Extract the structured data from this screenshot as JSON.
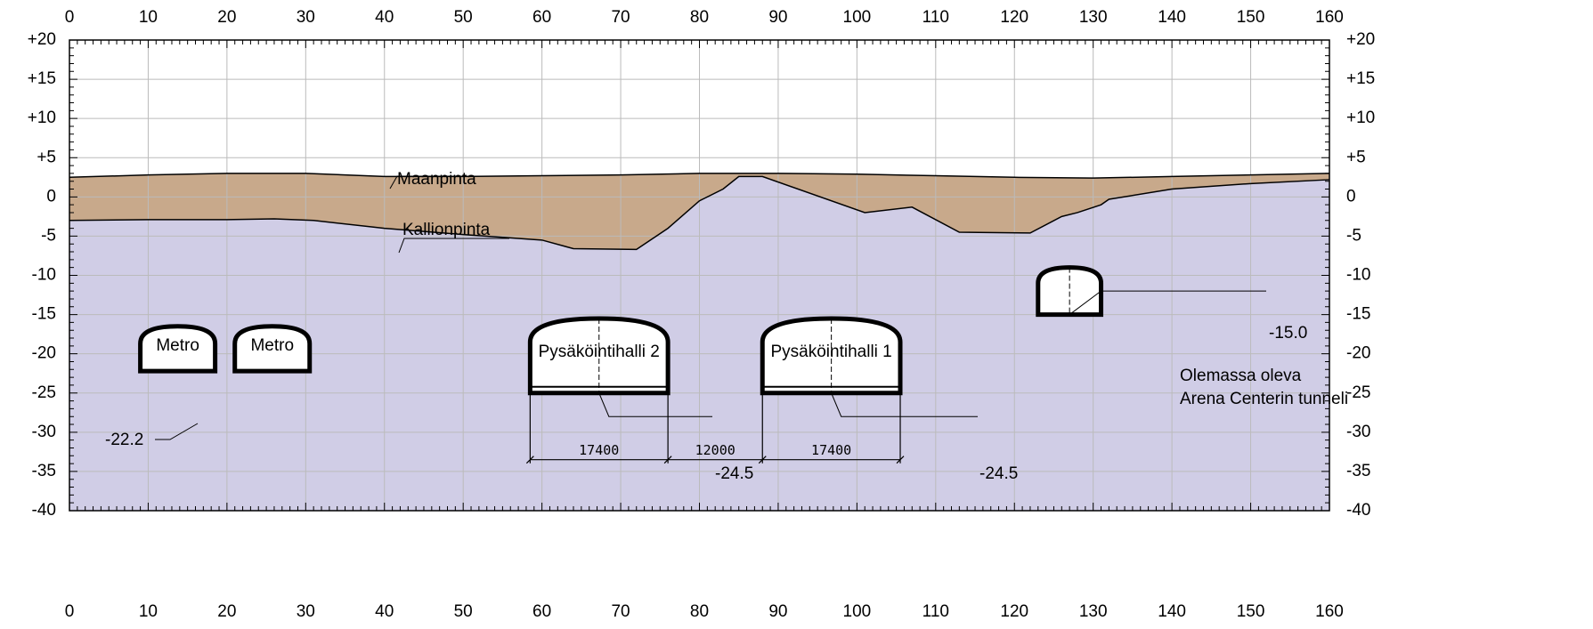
{
  "axes": {
    "xlim": [
      0,
      160
    ],
    "ylim": [
      -40,
      20
    ],
    "xticks": [
      0,
      10,
      20,
      30,
      40,
      50,
      60,
      70,
      80,
      90,
      100,
      110,
      120,
      130,
      140,
      150,
      160
    ],
    "yticks": [
      {
        "value": 20,
        "label": "+20"
      },
      {
        "value": 15,
        "label": "+15"
      },
      {
        "value": 10,
        "label": "+10"
      },
      {
        "value": 5,
        "label": "+5"
      },
      0,
      -5,
      -10,
      -15,
      -20,
      -25,
      -30,
      -35,
      -40
    ]
  },
  "profiles": {
    "ground": {
      "label": "Maanpinta",
      "x": [
        0,
        10,
        20,
        30,
        40,
        50,
        60,
        70,
        80,
        90,
        100,
        110,
        120,
        130,
        140,
        150,
        160
      ],
      "y": [
        2.5,
        2.8,
        3,
        3,
        2.6,
        2.6,
        2.7,
        2.8,
        3,
        3,
        2.9,
        2.7,
        2.5,
        2.4,
        2.6,
        2.8,
        3
      ]
    },
    "bedrock": {
      "label": "Kallionpinta",
      "x": [
        0,
        10,
        20,
        26,
        31,
        40,
        50,
        60,
        64,
        72,
        76,
        80,
        83,
        85,
        88,
        101,
        107,
        113,
        122,
        126,
        128,
        131,
        132,
        140,
        150,
        160
      ],
      "y": [
        -3,
        -2.9,
        -2.9,
        -2.8,
        -3,
        -4,
        -4.8,
        -5.5,
        -6.6,
        -6.7,
        -4,
        -0.5,
        1,
        2.6,
        2.6,
        -2,
        -1.3,
        -4.5,
        -4.6,
        -2.5,
        -2,
        -1,
        -0.3,
        1,
        1.7,
        2.2
      ]
    }
  },
  "tunnels": [
    {
      "label": "Metro"
    },
    {
      "label": "Metro"
    },
    {
      "label": "Pysäköintihalli 2"
    },
    {
      "label": "Pysäköintihalli 1"
    }
  ],
  "levels": {
    "metro": "-22.2",
    "halli2": "-24.5",
    "halli1": "-24.5",
    "arena": "-15.0"
  },
  "dimensions": [
    "17400",
    "12000",
    "17400"
  ],
  "arena_note": [
    "Olemassa oleva",
    "Arena Centerin tunneli"
  ]
}
